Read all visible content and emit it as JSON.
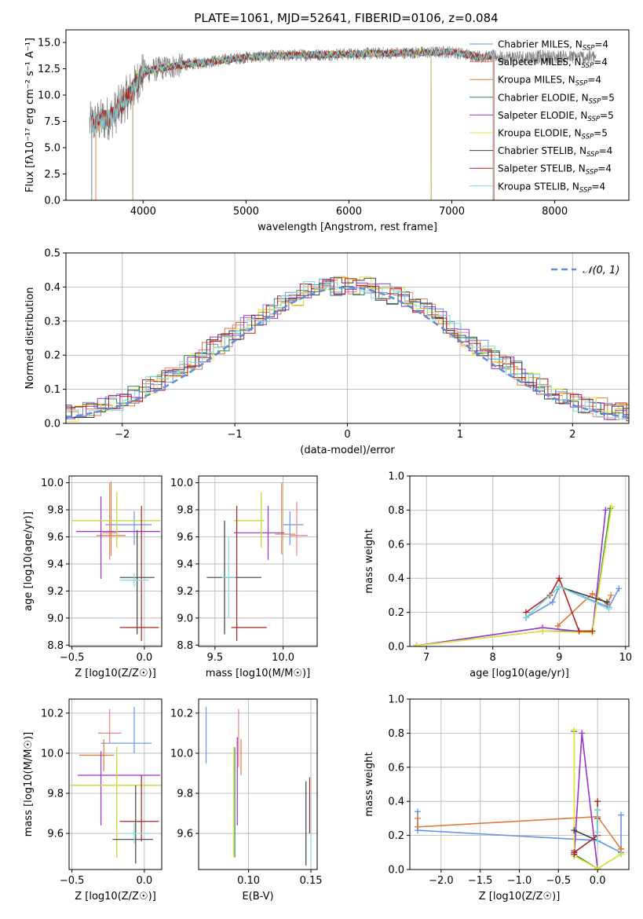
{
  "title": "PLATE=1061, MJD=52641, FIBERID=0106, z=0.084",
  "colors": {
    "Chabrier MILES": "#6495ed",
    "Salpeter MILES": "#f08080",
    "Kroupa MILES": "#e07b39",
    "Chabrier ELODIE": "#2e8b57",
    "Salpeter ELODIE": "#9932cc",
    "Kroupa ELODIE": "#e4e43a",
    "Chabrier STELIB": "#404040",
    "Salpeter STELIB": "#b22222",
    "Kroupa STELIB": "#7fdbe0",
    "data": "#808080",
    "normal": "#5b8fd8"
  },
  "chart_data": [
    {
      "id": "spectrum",
      "type": "line",
      "xlabel": "wavelength [Angstrom, rest frame]",
      "ylabel": "Flux [fλ10⁻¹⁷ erg cm⁻² s⁻¹ A⁻¹]",
      "xlim": [
        3250,
        8720
      ],
      "ylim": [
        0,
        16.2
      ],
      "xticks": [
        4000,
        5000,
        6000,
        7000,
        8000
      ],
      "yticks": [
        0.0,
        2.5,
        5.0,
        7.5,
        10.0,
        12.5,
        15.0
      ],
      "grid": false,
      "legend_position": "right",
      "legend": [
        {
          "label": "Chabrier MILES, N",
          "sub": "SSP",
          "suffix": "=4",
          "color": "#6495ed"
        },
        {
          "label": "Salpeter MILES, N",
          "sub": "SSP",
          "suffix": "=4",
          "color": "#f08080"
        },
        {
          "label": "Kroupa MILES, N",
          "sub": "SSP",
          "suffix": "=4",
          "color": "#e07b39"
        },
        {
          "label": "Chabrier ELODIE, N",
          "sub": "SSP",
          "suffix": "=5",
          "color": "#2e8b57"
        },
        {
          "label": "Salpeter ELODIE, N",
          "sub": "SSP",
          "suffix": "=5",
          "color": "#9932cc"
        },
        {
          "label": "Kroupa ELODIE, N",
          "sub": "SSP",
          "suffix": "=5",
          "color": "#e4e43a"
        },
        {
          "label": "Chabrier STELIB, N",
          "sub": "SSP",
          "suffix": "=4",
          "color": "#404040"
        },
        {
          "label": "Salpeter STELIB, N",
          "sub": "SSP",
          "suffix": "=4",
          "color": "#b22222"
        },
        {
          "label": "Kroupa STELIB, N",
          "sub": "SSP",
          "suffix": "=4",
          "color": "#7fdbe0"
        }
      ],
      "continuum": {
        "x": [
          3500,
          3700,
          3900,
          4000,
          4200,
          4500,
          5000,
          5500,
          6000,
          6500,
          7000,
          7300,
          7400
        ],
        "y": [
          7.2,
          8.0,
          10.5,
          12.2,
          12.6,
          13.0,
          13.6,
          13.8,
          13.9,
          14.0,
          14.1,
          13.6,
          13.7
        ]
      },
      "model_ranges": {
        "MILES": [
          3540,
          7410
        ],
        "ELODIE": [
          3900,
          6800
        ],
        "STELIB": [
          3500,
          7400
        ]
      },
      "data_range": [
        3480,
        8400
      ]
    },
    {
      "id": "residual-hist",
      "type": "histogram",
      "xlabel": "(data-model)/error",
      "ylabel": "Normed distribution",
      "xlim": [
        -2.5,
        2.5
      ],
      "ylim": [
        0,
        0.5
      ],
      "xticks": [
        -2,
        -1,
        0,
        1,
        2
      ],
      "yticks": [
        0.0,
        0.1,
        0.2,
        0.3,
        0.4,
        0.5
      ],
      "grid": true,
      "legend_position": "top-right",
      "legend_label": "N(0,1)",
      "bin_width": 0.1
    },
    {
      "id": "age-vs-Z",
      "type": "errorbar",
      "xlabel": "Z [log10(Z/Z☉)]",
      "ylabel": "age [log10(age/yr)]",
      "xlim": [
        -0.52,
        0.12
      ],
      "ylim": [
        8.79,
        10.05
      ],
      "xticks": [
        -0.5,
        0.0
      ],
      "yticks": [
        8.8,
        9.0,
        9.2,
        9.4,
        9.6,
        9.8,
        10.0
      ],
      "grid": true,
      "points": [
        {
          "model": "Chabrier MILES",
          "x": -0.07,
          "xerr": [
            0.2,
            0.12
          ],
          "y": 9.69,
          "yerr": [
            0.15,
            0.1
          ]
        },
        {
          "model": "Salpeter MILES",
          "x": -0.24,
          "xerr": [
            0.05,
            0.05
          ],
          "y": 9.63,
          "yerr": [
            0.2,
            0.37
          ]
        },
        {
          "model": "Kroupa MILES",
          "x": -0.23,
          "xerr": [
            0.1,
            0.1
          ],
          "y": 9.61,
          "yerr": [
            0.15,
            0.4
          ]
        },
        {
          "model": "Chabrier ELODIE",
          "x": -0.19,
          "xerr": [
            0.31,
            0.3
          ],
          "y": 9.72,
          "yerr": [
            0.2,
            0.21
          ]
        },
        {
          "model": "Salpeter ELODIE",
          "x": -0.3,
          "xerr": [
            0.17,
            0.41
          ],
          "y": 9.64,
          "yerr": [
            0.35,
            0.26
          ]
        },
        {
          "model": "Kroupa ELODIE",
          "x": -0.19,
          "xerr": [
            0.31,
            0.3
          ],
          "y": 9.72,
          "yerr": [
            0.2,
            0.21
          ]
        },
        {
          "model": "Chabrier STELIB",
          "x": -0.05,
          "xerr": [
            0.12,
            0.12
          ],
          "y": 9.3,
          "yerr": [
            0.42,
            0.35
          ]
        },
        {
          "model": "Salpeter STELIB",
          "x": -0.02,
          "xerr": [
            0.15,
            0.12
          ],
          "y": 8.93,
          "yerr": [
            0.1,
            0.9
          ]
        },
        {
          "model": "Kroupa STELIB",
          "x": -0.07,
          "xerr": [
            0.1,
            0.1
          ],
          "y": 9.28,
          "yerr": [
            0.05,
            0.05
          ]
        }
      ]
    },
    {
      "id": "age-vs-mass",
      "type": "errorbar",
      "xlabel": "mass [log10(M/M☉)]",
      "ylabel": "",
      "xlim": [
        9.38,
        10.25
      ],
      "ylim": [
        8.79,
        10.05
      ],
      "xticks": [
        9.5,
        10.0
      ],
      "yticks": [
        8.8,
        9.0,
        9.2,
        9.4,
        9.6,
        9.8,
        10.0
      ],
      "grid": true,
      "points": [
        {
          "model": "Chabrier MILES",
          "x": 10.05,
          "xerr": [
            0.05,
            0.1
          ],
          "y": 9.69,
          "yerr": [
            0.15,
            0.1
          ]
        },
        {
          "model": "Salpeter MILES",
          "x": 10.1,
          "xerr": [
            0.05,
            0.08
          ],
          "y": 9.61,
          "yerr": [
            0.15,
            0.25
          ]
        },
        {
          "model": "Kroupa MILES",
          "x": 9.99,
          "xerr": [
            0.05,
            0.1
          ],
          "y": 9.62,
          "yerr": [
            0.15,
            0.38
          ]
        },
        {
          "model": "Chabrier ELODIE",
          "x": 9.84,
          "xerr": [
            0.2,
            0.02
          ],
          "y": 9.72,
          "yerr": [
            0.2,
            0.21
          ]
        },
        {
          "model": "Salpeter ELODIE",
          "x": 9.89,
          "xerr": [
            0.25,
            0.12
          ],
          "y": 9.63,
          "yerr": [
            0.2,
            0.2
          ]
        },
        {
          "model": "Kroupa ELODIE",
          "x": 9.84,
          "xerr": [
            0.2,
            0.02
          ],
          "y": 9.72,
          "yerr": [
            0.2,
            0.21
          ]
        },
        {
          "model": "Chabrier STELIB",
          "x": 9.57,
          "xerr": [
            0.13,
            0.27
          ],
          "y": 9.3,
          "yerr": [
            0.42,
            0.42
          ]
        },
        {
          "model": "Salpeter STELIB",
          "x": 9.66,
          "xerr": [
            0.04,
            0.22
          ],
          "y": 8.93,
          "yerr": [
            0.1,
            0.9
          ]
        },
        {
          "model": "Kroupa STELIB",
          "x": 9.6,
          "xerr": [
            0.05,
            0.05
          ],
          "y": 9.3,
          "yerr": [
            0.3,
            0.3
          ]
        }
      ]
    },
    {
      "id": "mass-weight-vs-age",
      "type": "line",
      "xlabel": "age [log10(age/yr)]",
      "ylabel": "mass weight",
      "xlim": [
        6.75,
        10.05
      ],
      "ylim": [
        0,
        1.0
      ],
      "xticks": [
        7,
        8,
        9,
        10
      ],
      "yticks": [
        0.0,
        0.2,
        0.4,
        0.6,
        0.8,
        1.0
      ],
      "grid": true,
      "series": [
        {
          "model": "Chabrier MILES",
          "x": [
            8.5,
            8.9,
            9.0,
            9.75,
            9.9
          ],
          "y": [
            0.17,
            0.26,
            0.35,
            0.23,
            0.34
          ]
        },
        {
          "model": "Kroupa MILES",
          "x": [
            8.98,
            9.5,
            9.73,
            9.78
          ],
          "y": [
            0.12,
            0.31,
            0.25,
            0.3
          ]
        },
        {
          "model": "Chabrier ELODIE",
          "x": [
            6.85,
            8.75,
            9.5,
            9.77
          ],
          "y": [
            0.005,
            0.09,
            0.09,
            0.81
          ]
        },
        {
          "model": "Salpeter ELODIE",
          "x": [
            6.85,
            8.75,
            9.5,
            9.7
          ],
          "y": [
            0.005,
            0.11,
            0.08,
            0.8
          ]
        },
        {
          "model": "Kroupa ELODIE",
          "x": [
            6.85,
            8.75,
            9.5,
            9.79
          ],
          "y": [
            0.005,
            0.09,
            0.08,
            0.82
          ]
        },
        {
          "model": "Chabrier STELIB",
          "x": [
            8.5,
            9.0,
            9.72
          ],
          "y": [
            0.17,
            0.35,
            0.26
          ]
        },
        {
          "model": "Salpeter STELIB",
          "x": [
            8.5,
            8.86,
            9.0,
            9.3,
            9.5
          ],
          "y": [
            0.2,
            0.3,
            0.4,
            0.09,
            0.09
          ]
        },
        {
          "model": "Kroupa STELIB",
          "x": [
            8.5,
            9.0,
            9.75
          ],
          "y": [
            0.17,
            0.35,
            0.22
          ]
        }
      ]
    },
    {
      "id": "mass-vs-Z",
      "type": "errorbar",
      "xlabel": "Z [log10(Z/Z☉)]",
      "ylabel": "mass [log10(M/M☉)]",
      "xlim": [
        -0.52,
        0.12
      ],
      "ylim": [
        9.42,
        10.27
      ],
      "xticks": [
        -0.5,
        0.0
      ],
      "yticks": [
        9.6,
        9.8,
        10.0,
        10.2
      ],
      "grid": true,
      "points": [
        {
          "model": "Chabrier MILES",
          "x": -0.07,
          "xerr": [
            0.23,
            0.12
          ],
          "y": 10.05,
          "yerr": [
            0.05,
            0.18
          ]
        },
        {
          "model": "Salpeter MILES",
          "x": -0.24,
          "xerr": [
            0.08,
            0.08
          ],
          "y": 10.1,
          "yerr": [
            0.05,
            0.12
          ]
        },
        {
          "model": "Kroupa MILES",
          "x": -0.28,
          "xerr": [
            0.17,
            0.07
          ],
          "y": 9.99,
          "yerr": [
            0.08,
            0.08
          ]
        },
        {
          "model": "Chabrier ELODIE",
          "x": -0.19,
          "xerr": [
            0.32,
            0.31
          ],
          "y": 9.84,
          "yerr": [
            0.36,
            0.19
          ]
        },
        {
          "model": "Salpeter ELODIE",
          "x": -0.3,
          "xerr": [
            0.16,
            0.41
          ],
          "y": 9.89,
          "yerr": [
            0.25,
            0.12
          ]
        },
        {
          "model": "Kroupa ELODIE",
          "x": -0.19,
          "xerr": [
            0.32,
            0.31
          ],
          "y": 9.84,
          "yerr": [
            0.36,
            0.19
          ]
        },
        {
          "model": "Chabrier STELIB",
          "x": -0.06,
          "xerr": [
            0.16,
            0.12
          ],
          "y": 9.57,
          "yerr": [
            0.12,
            0.27
          ]
        },
        {
          "model": "Salpeter STELIB",
          "x": -0.02,
          "xerr": [
            0.15,
            0.12
          ],
          "y": 9.66,
          "yerr": [
            0.1,
            0.23
          ]
        },
        {
          "model": "Kroupa STELIB",
          "x": -0.07,
          "xerr": [
            0.1,
            0.1
          ],
          "y": 9.6,
          "yerr": [
            0.05,
            0.05
          ]
        }
      ]
    },
    {
      "id": "mass-vs-ebv",
      "type": "errorbar",
      "xlabel": "E(B-V)",
      "ylabel": "",
      "xlim": [
        0.06,
        0.155
      ],
      "ylim": [
        9.42,
        10.27
      ],
      "xticks": [
        0.1,
        0.15
      ],
      "yticks": [
        9.6,
        9.8,
        10.0,
        10.2
      ],
      "grid": true,
      "points": [
        {
          "model": "Chabrier MILES",
          "x": 0.066,
          "y": 10.05,
          "yerr": [
            0.1,
            0.18
          ]
        },
        {
          "model": "Salpeter MILES",
          "x": 0.092,
          "y": 10.1,
          "yerr": [
            0.17,
            0.12
          ]
        },
        {
          "model": "Kroupa MILES",
          "x": 0.094,
          "y": 9.99,
          "yerr": [
            0.1,
            0.08
          ]
        },
        {
          "model": "Chabrier ELODIE",
          "x": 0.089,
          "y": 9.84,
          "yerr": [
            0.36,
            0.19
          ]
        },
        {
          "model": "Salpeter ELODIE",
          "x": 0.091,
          "y": 9.89,
          "yerr": [
            0.25,
            0.19
          ]
        },
        {
          "model": "Kroupa ELODIE",
          "x": 0.088,
          "y": 9.84,
          "yerr": [
            0.36,
            0.19
          ]
        },
        {
          "model": "Chabrier STELIB",
          "x": 0.146,
          "y": 9.57,
          "yerr": [
            0.13,
            0.29
          ]
        },
        {
          "model": "Salpeter STELIB",
          "x": 0.149,
          "y": 9.8,
          "yerr": [
            0.2,
            0.08
          ]
        },
        {
          "model": "Kroupa STELIB",
          "x": 0.15,
          "y": 9.6,
          "yerr": [
            0.15,
            0.2
          ]
        }
      ]
    },
    {
      "id": "mass-weight-vs-Z",
      "type": "line",
      "xlabel": "Z [log10(Z/Z☉)]",
      "ylabel": "mass weight",
      "xlim": [
        -2.4,
        0.4
      ],
      "ylim": [
        0,
        1.0
      ],
      "xticks": [
        -2.0,
        -1.5,
        -1.0,
        -0.5,
        0.0
      ],
      "yticks": [
        0.0,
        0.2,
        0.4,
        0.6,
        0.8,
        1.0
      ],
      "grid": true,
      "series": [
        {
          "model": "Chabrier MILES",
          "x": [
            -2.3,
            -2.3,
            0.0,
            0.3,
            0.3
          ],
          "y": [
            0.34,
            0.23,
            0.17,
            0.1,
            0.32
          ]
        },
        {
          "model": "Kroupa MILES",
          "x": [
            -2.3,
            -2.3,
            0.0,
            0.3,
            0.3
          ],
          "y": [
            0.3,
            0.25,
            0.31,
            0.12,
            0.12
          ]
        },
        {
          "model": "Chabrier ELODIE",
          "x": [
            -0.3,
            -0.3,
            0.0,
            0.3
          ],
          "y": [
            0.81,
            0.09,
            0.005,
            0.09
          ]
        },
        {
          "model": "Salpeter ELODIE",
          "x": [
            -0.3,
            -0.3,
            -0.2,
            0.0
          ],
          "y": [
            0.11,
            0.08,
            0.8,
            0.005
          ]
        },
        {
          "model": "Kroupa ELODIE",
          "x": [
            -0.3,
            -0.3,
            0.0,
            0.3
          ],
          "y": [
            0.82,
            0.08,
            0.005,
            0.09
          ]
        },
        {
          "model": "Chabrier STELIB",
          "x": [
            -0.3,
            0.0,
            0.0
          ],
          "y": [
            0.23,
            0.17,
            0.35
          ]
        },
        {
          "model": "Salpeter STELIB",
          "x": [
            -0.3,
            -0.3,
            0.0,
            0.0,
            0.0
          ],
          "y": [
            0.09,
            0.1,
            0.2,
            0.4,
            0.3
          ]
        },
        {
          "model": "Kroupa STELIB",
          "x": [
            0.0,
            0.0,
            0.0
          ],
          "y": [
            0.17,
            0.22,
            0.35
          ]
        }
      ]
    }
  ]
}
